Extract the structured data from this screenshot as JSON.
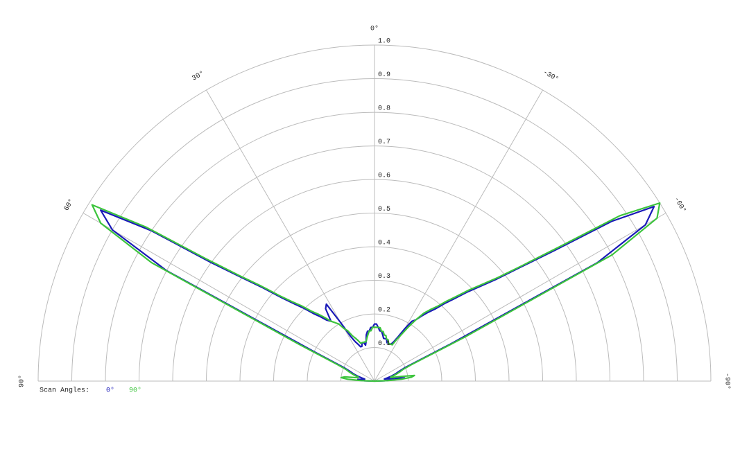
{
  "chart_data": {
    "type": "polar",
    "thetalim": [
      -90,
      90
    ],
    "thetaticks": [
      {
        "value": 90,
        "label": "90°"
      },
      {
        "value": 60,
        "label": "60°"
      },
      {
        "value": 30,
        "label": "30°"
      },
      {
        "value": 0,
        "label": "0°"
      },
      {
        "value": -30,
        "label": "-30°"
      },
      {
        "value": -60,
        "label": "-60°"
      },
      {
        "value": -90,
        "label": "-90°"
      }
    ],
    "rlim": [
      0,
      1
    ],
    "rticks": [
      0.1,
      0.2,
      0.3,
      0.4,
      0.5,
      0.6,
      0.7,
      0.8,
      0.9,
      {
        "value": 1,
        "label": "1.0"
      }
    ],
    "grid": true,
    "legend_title": "Scan Angles:",
    "x": [
      -90,
      -88,
      -86,
      -84,
      -82,
      -80,
      -78,
      -76,
      -74,
      -72,
      -70,
      -68,
      -66,
      -64,
      -62,
      -60,
      -58,
      -56,
      -54,
      -52,
      -50,
      -48,
      -46,
      -44,
      -42,
      -40,
      -38,
      -36,
      -34,
      -32,
      -30,
      -28,
      -26,
      -24,
      -22,
      -20,
      -18,
      -16,
      -14,
      -12,
      -10,
      -8,
      -6,
      -4,
      -2,
      0,
      2,
      4,
      6,
      8,
      10,
      12,
      14,
      16,
      18,
      20,
      22,
      24,
      26,
      28,
      30,
      32,
      34,
      36,
      38,
      40,
      42,
      44,
      46,
      48,
      50,
      52,
      54,
      56,
      58,
      60,
      62,
      64,
      66,
      68,
      70,
      72,
      74,
      76,
      78,
      80,
      82,
      84,
      86,
      88,
      90
    ],
    "series": [
      {
        "name": "0°",
        "color": "#1a1ab8",
        "values": [
          0.0,
          0.03,
          0.06,
          0.09,
          0.07,
          0.04,
          0.03,
          0.04,
          0.05,
          0.06,
          0.07,
          0.08,
          0.1,
          0.25,
          0.75,
          0.93,
          0.98,
          0.85,
          0.66,
          0.55,
          0.47,
          0.42,
          0.38,
          0.34,
          0.31,
          0.28,
          0.26,
          0.24,
          0.22,
          0.21,
          0.18,
          0.15,
          0.13,
          0.12,
          0.12,
          0.12,
          0.12,
          0.13,
          0.13,
          0.13,
          0.14,
          0.15,
          0.15,
          0.16,
          0.17,
          0.17,
          0.16,
          0.16,
          0.15,
          0.15,
          0.14,
          0.12,
          0.11,
          0.12,
          0.12,
          0.11,
          0.11,
          0.12,
          0.13,
          0.15,
          0.2,
          0.27,
          0.26,
          0.22,
          0.23,
          0.25,
          0.27,
          0.3,
          0.33,
          0.37,
          0.43,
          0.5,
          0.6,
          0.8,
          0.96,
          0.9,
          0.7,
          0.2,
          0.1,
          0.08,
          0.07,
          0.06,
          0.05,
          0.04,
          0.03,
          0.03,
          0.04,
          0.05,
          0.05,
          0.03,
          0.0
        ]
      },
      {
        "name": "90°",
        "color": "#3cc43c",
        "values": [
          0.0,
          0.04,
          0.08,
          0.11,
          0.12,
          0.08,
          0.05,
          0.05,
          0.06,
          0.07,
          0.08,
          0.09,
          0.12,
          0.3,
          0.8,
          0.97,
          1.0,
          0.88,
          0.68,
          0.56,
          0.48,
          0.43,
          0.39,
          0.35,
          0.32,
          0.29,
          0.27,
          0.25,
          0.22,
          0.19,
          0.16,
          0.14,
          0.12,
          0.12,
          0.12,
          0.12,
          0.13,
          0.13,
          0.14,
          0.14,
          0.15,
          0.15,
          0.16,
          0.16,
          0.16,
          0.16,
          0.16,
          0.15,
          0.15,
          0.14,
          0.13,
          0.12,
          0.12,
          0.12,
          0.12,
          0.12,
          0.13,
          0.14,
          0.15,
          0.17,
          0.18,
          0.2,
          0.21,
          0.22,
          0.24,
          0.26,
          0.28,
          0.31,
          0.34,
          0.38,
          0.44,
          0.51,
          0.62,
          0.82,
          0.99,
          0.94,
          0.75,
          0.25,
          0.12,
          0.09,
          0.08,
          0.07,
          0.06,
          0.05,
          0.05,
          0.06,
          0.09,
          0.1,
          0.08,
          0.04,
          0.0
        ]
      }
    ]
  }
}
